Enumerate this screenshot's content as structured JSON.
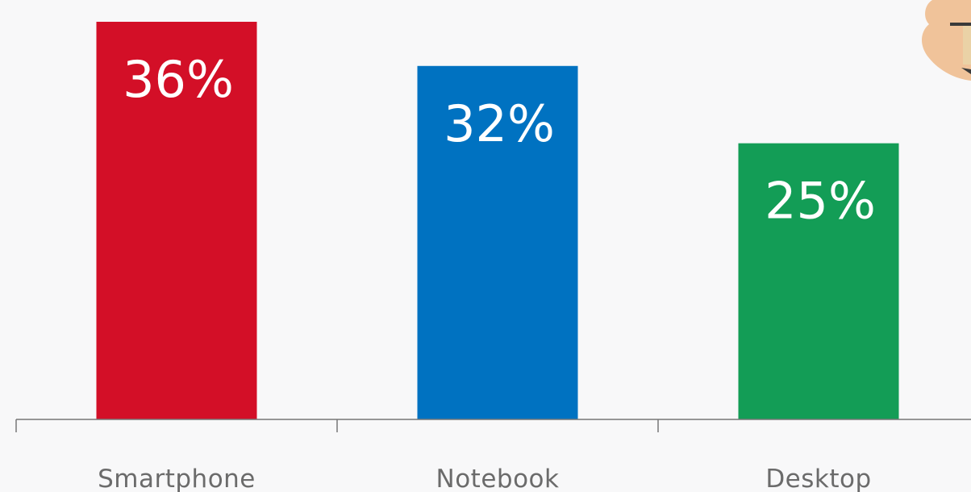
{
  "chart_data": {
    "type": "bar",
    "categories": [
      "Smartphone",
      "Notebook",
      "Desktop"
    ],
    "values": [
      36,
      32,
      25
    ],
    "value_labels": [
      "36%",
      "32%",
      "25%"
    ],
    "colors": [
      "#d30f27",
      "#0072c1",
      "#139d56"
    ],
    "unit": "%",
    "ylim": [
      0,
      36
    ],
    "grid": false,
    "legend": "none"
  },
  "decoration": {
    "icon": "hand-holding-device-icon",
    "skin_color": "#f0c39a",
    "axis_color": "#777777",
    "background": "#f8f8f9"
  }
}
